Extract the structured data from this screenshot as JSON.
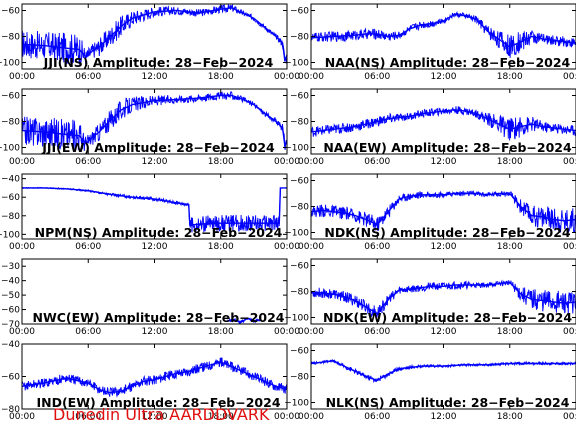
{
  "footer": "Dunedin Ultra AARDDVARK",
  "colors": {
    "trace": "#0000ff",
    "axes": "#000000",
    "footer": "#e01010"
  },
  "chart_data": [
    {
      "type": "line",
      "title": "JJI(NS) Amplitude: 28-Feb-2024",
      "xticks": [
        "00:00",
        "06:00",
        "12:00",
        "18:00",
        "00:00"
      ],
      "xlim": [
        0,
        24
      ],
      "ylim": [
        -105,
        -55
      ],
      "yticks": [
        -100,
        -80,
        -60
      ],
      "x": [
        0,
        2,
        4,
        5.2,
        5.8,
        6.4,
        7,
        8,
        9,
        10,
        12,
        14,
        16,
        18,
        19,
        20,
        21,
        22,
        23,
        23.6,
        23.8,
        24
      ],
      "y": [
        -86,
        -87,
        -89,
        -90,
        -96,
        -91,
        -88,
        -80,
        -72,
        -66,
        -61,
        -60,
        -62,
        -59,
        -58,
        -62,
        -66,
        -73,
        -80,
        -85,
        -98,
        -95
      ],
      "noise": [
        11,
        11,
        12,
        12,
        6,
        6,
        7,
        8,
        8,
        6,
        4,
        3,
        3,
        3,
        3,
        2,
        2,
        2,
        2,
        3,
        6,
        4
      ]
    },
    {
      "type": "line",
      "title": "NAA(NS) Amplitude: 28-Feb-2024",
      "xticks": [
        "00:00",
        "06:00",
        "12:00",
        "18:00",
        "00:00"
      ],
      "xlim": [
        0,
        24
      ],
      "ylim": [
        -105,
        -55
      ],
      "yticks": [
        -100,
        -80,
        -60
      ],
      "x": [
        0,
        2,
        4,
        5,
        6,
        7,
        8,
        9,
        10,
        11,
        12,
        13,
        14,
        15,
        16,
        17,
        18,
        19,
        20,
        21,
        22,
        23,
        24
      ],
      "y": [
        -81,
        -80,
        -79,
        -78,
        -78,
        -80,
        -79,
        -74,
        -71,
        -70,
        -68,
        -63,
        -64,
        -67,
        -76,
        -82,
        -88,
        -84,
        -80,
        -82,
        -83,
        -84,
        -85
      ],
      "noise": [
        4,
        4,
        4,
        4,
        4,
        4,
        3,
        3,
        3,
        3,
        2,
        2,
        2,
        3,
        5,
        7,
        9,
        8,
        6,
        4,
        4,
        4,
        4
      ]
    },
    {
      "type": "line",
      "title": "JJI(EW) Amplitude: 28-Feb-2024",
      "xticks": [
        "00:00",
        "06:00",
        "12:00",
        "18:00",
        "00:00"
      ],
      "xlim": [
        0,
        24
      ],
      "ylim": [
        -105,
        -55
      ],
      "yticks": [
        -100,
        -80,
        -60
      ],
      "x": [
        0,
        2,
        4,
        5.2,
        5.8,
        6.4,
        7,
        8,
        9,
        10,
        12,
        14,
        16,
        18,
        19,
        20,
        21,
        22,
        23,
        23.6,
        23.8,
        24
      ],
      "y": [
        -87,
        -88,
        -90,
        -91,
        -97,
        -92,
        -88,
        -79,
        -71,
        -67,
        -64,
        -63,
        -62,
        -60,
        -60,
        -63,
        -67,
        -74,
        -80,
        -85,
        -98,
        -95
      ],
      "noise": [
        11,
        12,
        12,
        12,
        6,
        6,
        7,
        8,
        8,
        6,
        4,
        3,
        3,
        3,
        3,
        2,
        2,
        2,
        2,
        3,
        6,
        4
      ]
    },
    {
      "type": "line",
      "title": "NAA(EW) Amplitude: 28-Feb-2024",
      "xticks": [
        "00:00",
        "06:00",
        "12:00",
        "18:00",
        "00:00"
      ],
      "xlim": [
        0,
        24
      ],
      "ylim": [
        -105,
        -55
      ],
      "yticks": [
        -100,
        -80,
        -60
      ],
      "x": [
        0,
        2,
        4,
        5,
        6,
        7,
        8,
        9,
        10,
        11,
        12,
        13,
        14,
        15,
        16,
        17,
        18,
        19,
        20,
        21,
        22,
        23,
        24
      ],
      "y": [
        -88,
        -86,
        -84,
        -82,
        -80,
        -78,
        -77,
        -76,
        -74,
        -73,
        -72,
        -71,
        -72,
        -74,
        -78,
        -82,
        -86,
        -84,
        -82,
        -84,
        -85,
        -86,
        -87
      ],
      "noise": [
        4,
        4,
        4,
        4,
        4,
        4,
        3,
        3,
        3,
        3,
        3,
        3,
        3,
        3,
        5,
        7,
        9,
        8,
        6,
        4,
        4,
        4,
        4
      ]
    },
    {
      "type": "line",
      "title": "NPM(NS) Amplitude: 28-Feb-2024",
      "xticks": [
        "00:00",
        "06:00",
        "12:00",
        "18:00",
        "00:00"
      ],
      "xlim": [
        0,
        24
      ],
      "ylim": [
        -105,
        -35
      ],
      "yticks": [
        -100,
        -80,
        -60,
        -40
      ],
      "x": [
        0,
        2,
        4,
        6,
        8,
        10,
        12,
        13,
        14,
        15.1,
        15.2,
        16,
        18,
        20,
        22,
        23.3,
        23.4,
        24
      ],
      "y": [
        -50,
        -50,
        -51,
        -53,
        -57,
        -60,
        -62,
        -64,
        -66,
        -68,
        -90,
        -89,
        -88,
        -88,
        -88,
        -88,
        -50,
        -50
      ],
      "noise": [
        0.5,
        0.5,
        0.8,
        1,
        1.5,
        2,
        2,
        2,
        2,
        2,
        9,
        9,
        9,
        9,
        9,
        9,
        0,
        0
      ]
    },
    {
      "type": "line",
      "title": "NDK(NS) Amplitude: 28-Feb-2024",
      "xticks": [
        "00:00",
        "06:00",
        "12:00",
        "18:00",
        "00:00"
      ],
      "xlim": [
        0,
        24
      ],
      "ylim": [
        -105,
        -55
      ],
      "yticks": [
        -100,
        -80,
        -60
      ],
      "x": [
        0,
        1,
        2,
        3,
        4,
        5,
        6,
        7,
        8,
        9,
        10,
        11,
        12,
        13,
        14,
        15,
        16,
        17,
        18,
        19,
        20,
        21,
        22,
        23,
        24
      ],
      "y": [
        -84,
        -83,
        -84,
        -85,
        -87,
        -90,
        -94,
        -84,
        -74,
        -72,
        -71,
        -71,
        -71,
        -70,
        -70,
        -70,
        -71,
        -70,
        -70,
        -80,
        -87,
        -88,
        -90,
        -91,
        -90
      ],
      "noise": [
        5,
        5,
        5,
        5,
        5,
        6,
        6,
        5,
        3,
        3,
        3,
        2,
        2,
        2,
        2,
        2,
        2,
        2,
        2,
        6,
        8,
        9,
        9,
        10,
        10
      ]
    },
    {
      "type": "line",
      "title": "NWC(EW) Amplitude: 28-Feb-2024",
      "xticks": [
        "00:00",
        "06:00",
        "12:00",
        "18:00",
        "00:00"
      ],
      "xlim": [
        0,
        24
      ],
      "ylim": [
        -70,
        -25
      ],
      "yticks": [
        -70,
        -60,
        -50,
        -40,
        -30
      ],
      "x": [
        18.6,
        19.2,
        19.8,
        20.4,
        21,
        21.6
      ],
      "y": [
        -68,
        -67,
        -69,
        -66,
        -68,
        -67
      ],
      "noise": [
        1,
        1,
        1,
        1,
        1,
        1
      ]
    },
    {
      "type": "line",
      "title": "NDK(EW) Amplitude: 28-Feb-2024",
      "xticks": [
        "00:00",
        "06:00",
        "12:00",
        "18:00",
        "00:00"
      ],
      "xlim": [
        0,
        24
      ],
      "ylim": [
        -105,
        -55
      ],
      "yticks": [
        -100,
        -80,
        -60
      ],
      "x": [
        0,
        1,
        2,
        3,
        4,
        5,
        6,
        7,
        8,
        9,
        10,
        11,
        12,
        13,
        14,
        15,
        16,
        17,
        18,
        19,
        20,
        21,
        22,
        23,
        24
      ],
      "y": [
        -81,
        -81,
        -82,
        -84,
        -87,
        -92,
        -97,
        -86,
        -79,
        -78,
        -77,
        -76,
        -76,
        -75,
        -75,
        -75,
        -75,
        -74,
        -73,
        -82,
        -86,
        -87,
        -88,
        -89,
        -88
      ],
      "noise": [
        4,
        4,
        4,
        4,
        5,
        5,
        5,
        4,
        3,
        3,
        3,
        3,
        3,
        3,
        3,
        2,
        2,
        2,
        2,
        6,
        8,
        9,
        9,
        9,
        9
      ]
    },
    {
      "type": "line",
      "title": "IND(EW) Amplitude: 28-Feb-2024",
      "xticks": [
        "00:00",
        "06:00",
        "12:00",
        "18:00",
        "00:00"
      ],
      "xlim": [
        0,
        24
      ],
      "ylim": [
        -80,
        -40
      ],
      "yticks": [
        -80,
        -60,
        -40
      ],
      "x": [
        0,
        2,
        4,
        6,
        7,
        8,
        9,
        10,
        11,
        12,
        13,
        14,
        15,
        16,
        17,
        18,
        19,
        20,
        21,
        22,
        23,
        24
      ],
      "y": [
        -66,
        -64,
        -61,
        -64,
        -68,
        -70,
        -69,
        -66,
        -63,
        -62,
        -60,
        -58,
        -57,
        -55,
        -53,
        -51,
        -54,
        -57,
        -60,
        -63,
        -66,
        -68
      ],
      "noise": [
        3,
        3,
        3,
        3,
        3,
        3,
        3,
        3,
        3,
        3,
        3,
        3,
        3,
        3,
        3,
        3,
        3,
        3,
        3,
        3,
        3,
        3
      ]
    },
    {
      "type": "line",
      "title": "NLK(NS) Amplitude: 28-Feb-2024",
      "xticks": [
        "00:00",
        "06:00",
        "12:00",
        "18:00",
        "00:00"
      ],
      "xlim": [
        0,
        24
      ],
      "ylim": [
        -105,
        -55
      ],
      "yticks": [
        -100,
        -80,
        -60
      ],
      "x": [
        0,
        1,
        2,
        3,
        4,
        5,
        6,
        7,
        8,
        9,
        10,
        12,
        14,
        16,
        18,
        20,
        22,
        24
      ],
      "y": [
        -70,
        -69,
        -68,
        -72,
        -76,
        -80,
        -83,
        -78,
        -74,
        -73,
        -72,
        -72,
        -71,
        -71,
        -70,
        -70,
        -70,
        -70
      ],
      "noise": [
        1,
        1,
        1,
        1.5,
        2,
        2,
        2,
        2,
        1.5,
        1.5,
        1,
        1,
        1,
        1,
        1,
        1,
        1,
        1
      ]
    }
  ]
}
